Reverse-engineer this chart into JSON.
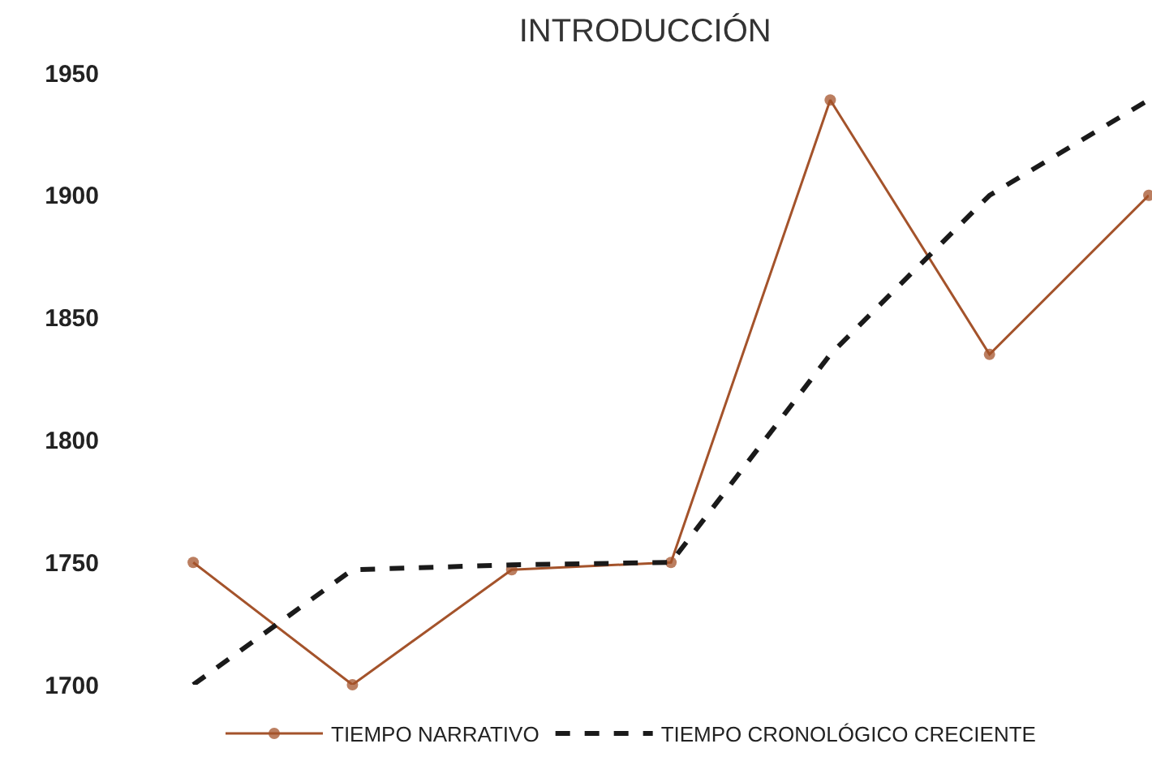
{
  "chart_data": {
    "type": "line",
    "title": "INTRODUCCIÓN",
    "categories": [
      null,
      null,
      null,
      null,
      null,
      null,
      null
    ],
    "series": [
      {
        "name": "TIEMPO NARRATIVO",
        "color": "#a4532b",
        "marker": "circle",
        "line_style": "solid",
        "values": [
          1750,
          1700,
          1747,
          1750,
          1939,
          1835,
          1900
        ]
      },
      {
        "name": "TIEMPO CRONOLÓGICO CRECIENTE",
        "color": "#1a1a1a",
        "marker": "none",
        "line_style": "dashed",
        "values": [
          1700,
          1747,
          1749,
          1750,
          1835,
          1900,
          1939
        ]
      }
    ],
    "ylim": [
      1700,
      1950
    ],
    "yticks": [
      1700,
      1750,
      1800,
      1850,
      1900,
      1950
    ],
    "tick_labels": "y",
    "legend": "bottom"
  }
}
